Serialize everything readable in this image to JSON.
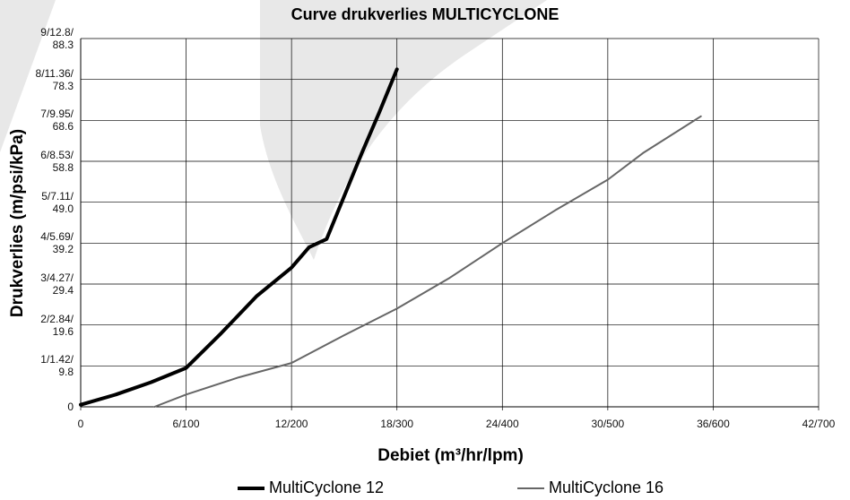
{
  "chart_data": {
    "type": "line",
    "title": "Curve drukverlies MULTICYCLONE",
    "x_label": "Debiet (m³/hr/lpm)",
    "y_label": "Drukverlies (m/psi/kPa)",
    "xlim": [
      0,
      42
    ],
    "ylim": [
      0,
      9
    ],
    "xticks": [
      0,
      {
        "value": 6,
        "label": "6/100"
      },
      {
        "value": 12,
        "label": "12/200"
      },
      {
        "value": 18,
        "label": "18/300"
      },
      {
        "value": 24,
        "label": "24/400"
      },
      {
        "value": 30,
        "label": "30/500"
      },
      {
        "value": 36,
        "label": "36/600"
      },
      {
        "value": 42,
        "label": "42/700"
      }
    ],
    "yticks": [
      0,
      {
        "value": 1,
        "label": "1/1.42/\n9.8"
      },
      {
        "value": 2,
        "label": "2/2.84/\n19.6"
      },
      {
        "value": 3,
        "label": "3/4.27/\n29.4"
      },
      {
        "value": 4,
        "label": "4/5.69/\n39.2"
      },
      {
        "value": 5,
        "label": "5/7.11/\n49.0"
      },
      {
        "value": 6,
        "label": "6/8.53/\n58.8"
      },
      {
        "value": 7,
        "label": "7/9.95/\n68.6"
      },
      {
        "value": 8,
        "label": "8/11.36/\n78.3"
      },
      {
        "value": 9,
        "label": "9/12.8/\n88.3"
      }
    ],
    "grid": true,
    "legend": "bottom",
    "series": [
      {
        "name": "MultiCyclone 12",
        "color": "#000000",
        "width": 4,
        "x": [
          0,
          2,
          4,
          6,
          8,
          10,
          12,
          13,
          14,
          16,
          17,
          18
        ],
        "values": [
          0.05,
          0.3,
          0.6,
          0.95,
          1.8,
          2.7,
          3.4,
          3.9,
          4.1,
          6.2,
          7.2,
          8.25
        ]
      },
      {
        "name": "MultiCyclone 16",
        "color": "#666666",
        "width": 2,
        "x": [
          4.2,
          6,
          9,
          12,
          15,
          18,
          21,
          24,
          27,
          30,
          32,
          35.3
        ],
        "values": [
          0,
          0.3,
          0.72,
          1.07,
          1.75,
          2.4,
          3.15,
          4.0,
          4.8,
          5.55,
          6.2,
          7.1
        ]
      }
    ]
  }
}
